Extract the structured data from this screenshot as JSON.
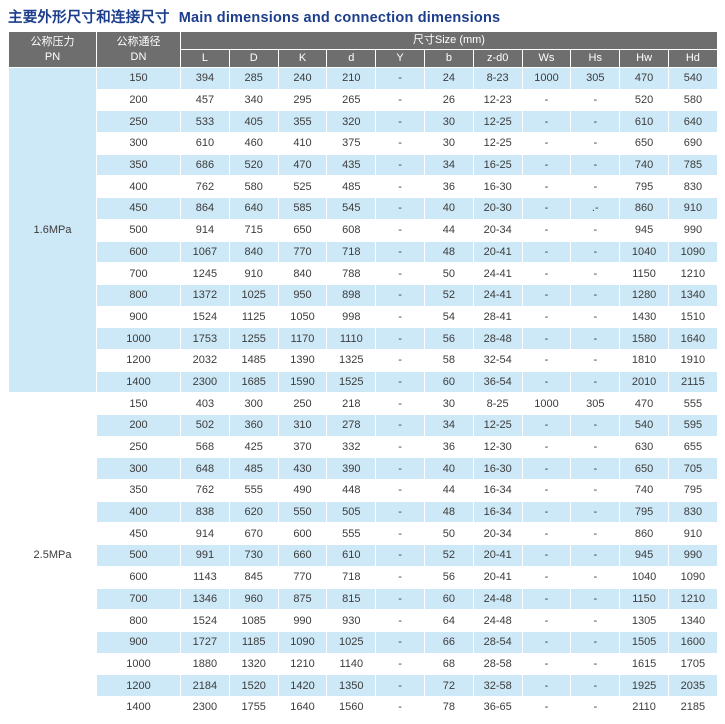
{
  "title": {
    "zh": "主要外形尺寸和连接尺寸",
    "en": "Main dimensions and connection dimensions"
  },
  "colors": {
    "title_text": "#1c3e8c",
    "header_bg": "#6e6e6e",
    "header_text": "#ffffff",
    "row_band": "#cde8f6",
    "row_plain": "#ffffff",
    "cell_text": "#3c3c3c"
  },
  "table": {
    "header": {
      "pn_zh": "公称压力",
      "pn_en": "PN",
      "dn_zh": "公称通径",
      "dn_en": "DN",
      "size_group": "尺寸Size (mm)",
      "size_columns": [
        "L",
        "D",
        "K",
        "d",
        "Y",
        "b",
        "z-d0",
        "Ws",
        "Hs",
        "Hw",
        "Hd"
      ]
    },
    "sections": [
      {
        "pn": "1.6MPa",
        "rows": [
          {
            "dn": "150",
            "values": [
              "394",
              "285",
              "240",
              "210",
              "-",
              "24",
              "8-23",
              "1000",
              "305",
              "470",
              "540"
            ]
          },
          {
            "dn": "200",
            "values": [
              "457",
              "340",
              "295",
              "265",
              "-",
              "26",
              "12-23",
              "-",
              "-",
              "520",
              "580"
            ]
          },
          {
            "dn": "250",
            "values": [
              "533",
              "405",
              "355",
              "320",
              "-",
              "30",
              "12-25",
              "-",
              "-",
              "610",
              "640"
            ]
          },
          {
            "dn": "300",
            "values": [
              "610",
              "460",
              "410",
              "375",
              "-",
              "30",
              "12-25",
              "-",
              "-",
              "650",
              "690"
            ]
          },
          {
            "dn": "350",
            "values": [
              "686",
              "520",
              "470",
              "435",
              "-",
              "34",
              "16-25",
              "-",
              "-",
              "740",
              "785"
            ]
          },
          {
            "dn": "400",
            "values": [
              "762",
              "580",
              "525",
              "485",
              "-",
              "36",
              "16-30",
              "-",
              "-",
              "795",
              "830"
            ]
          },
          {
            "dn": "450",
            "values": [
              "864",
              "640",
              "585",
              "545",
              "-",
              "40",
              "20-30",
              "-",
              ".-",
              "860",
              "910"
            ]
          },
          {
            "dn": "500",
            "values": [
              "914",
              "715",
              "650",
              "608",
              "-",
              "44",
              "20-34",
              "-",
              "-",
              "945",
              "990"
            ]
          },
          {
            "dn": "600",
            "values": [
              "1067",
              "840",
              "770",
              "718",
              "-",
              "48",
              "20-41",
              "-",
              "-",
              "1040",
              "1090"
            ]
          },
          {
            "dn": "700",
            "values": [
              "1245",
              "910",
              "840",
              "788",
              "-",
              "50",
              "24-41",
              "-",
              "-",
              "1150",
              "1210"
            ]
          },
          {
            "dn": "800",
            "values": [
              "1372",
              "1025",
              "950",
              "898",
              "-",
              "52",
              "24-41",
              "-",
              "-",
              "1280",
              "1340"
            ]
          },
          {
            "dn": "900",
            "values": [
              "1524",
              "1125",
              "1050",
              "998",
              "-",
              "54",
              "28-41",
              "-",
              "-",
              "1430",
              "1510"
            ]
          },
          {
            "dn": "1000",
            "values": [
              "1753",
              "1255",
              "1170",
              "1110",
              "-",
              "56",
              "28-48",
              "-",
              "-",
              "1580",
              "1640"
            ]
          },
          {
            "dn": "1200",
            "values": [
              "2032",
              "1485",
              "1390",
              "1325",
              "-",
              "58",
              "32-54",
              "-",
              "-",
              "1810",
              "1910"
            ]
          },
          {
            "dn": "1400",
            "values": [
              "2300",
              "1685",
              "1590",
              "1525",
              "-",
              "60",
              "36-54",
              "-",
              "-",
              "2010",
              "2115"
            ]
          }
        ]
      },
      {
        "pn": "2.5MPa",
        "rows": [
          {
            "dn": "150",
            "values": [
              "403",
              "300",
              "250",
              "218",
              "-",
              "30",
              "8-25",
              "1000",
              "305",
              "470",
              "555"
            ]
          },
          {
            "dn": "200",
            "values": [
              "502",
              "360",
              "310",
              "278",
              "-",
              "34",
              "12-25",
              "-",
              "-",
              "540",
              "595"
            ]
          },
          {
            "dn": "250",
            "values": [
              "568",
              "425",
              "370",
              "332",
              "-",
              "36",
              "12-30",
              "-",
              "-",
              "630",
              "655"
            ]
          },
          {
            "dn": "300",
            "values": [
              "648",
              "485",
              "430",
              "390",
              "-",
              "40",
              "16-30",
              "-",
              "-",
              "650",
              "705"
            ]
          },
          {
            "dn": "350",
            "values": [
              "762",
              "555",
              "490",
              "448",
              "-",
              "44",
              "16-34",
              "-",
              "-",
              "740",
              "795"
            ]
          },
          {
            "dn": "400",
            "values": [
              "838",
              "620",
              "550",
              "505",
              "-",
              "48",
              "16-34",
              "-",
              "-",
              "795",
              "830"
            ]
          },
          {
            "dn": "450",
            "values": [
              "914",
              "670",
              "600",
              "555",
              "-",
              "50",
              "20-34",
              "-",
              "-",
              "860",
              "910"
            ]
          },
          {
            "dn": "500",
            "values": [
              "991",
              "730",
              "660",
              "610",
              "-",
              "52",
              "20-41",
              "-",
              "-",
              "945",
              "990"
            ]
          },
          {
            "dn": "600",
            "values": [
              "1143",
              "845",
              "770",
              "718",
              "-",
              "56",
              "20-41",
              "-",
              "-",
              "1040",
              "1090"
            ]
          },
          {
            "dn": "700",
            "values": [
              "1346",
              "960",
              "875",
              "815",
              "-",
              "60",
              "24-48",
              "-",
              "-",
              "1150",
              "1210"
            ]
          },
          {
            "dn": "800",
            "values": [
              "1524",
              "1085",
              "990",
              "930",
              "-",
              "64",
              "24-48",
              "-",
              "-",
              "1305",
              "1340"
            ]
          },
          {
            "dn": "900",
            "values": [
              "1727",
              "1185",
              "1090",
              "1025",
              "-",
              "66",
              "28-54",
              "-",
              "-",
              "1505",
              "1600"
            ]
          },
          {
            "dn": "1000",
            "values": [
              "1880",
              "1320",
              "1210",
              "1140",
              "-",
              "68",
              "28-58",
              "-",
              "-",
              "1615",
              "1705"
            ]
          },
          {
            "dn": "1200",
            "values": [
              "2184",
              "1520",
              "1420",
              "1350",
              "-",
              "72",
              "32-58",
              "-",
              "-",
              "1925",
              "2035"
            ]
          },
          {
            "dn": "1400",
            "values": [
              "2300",
              "1755",
              "1640",
              "1560",
              "-",
              "78",
              "36-65",
              "-",
              "-",
              "2110",
              "2185"
            ]
          }
        ]
      }
    ]
  }
}
